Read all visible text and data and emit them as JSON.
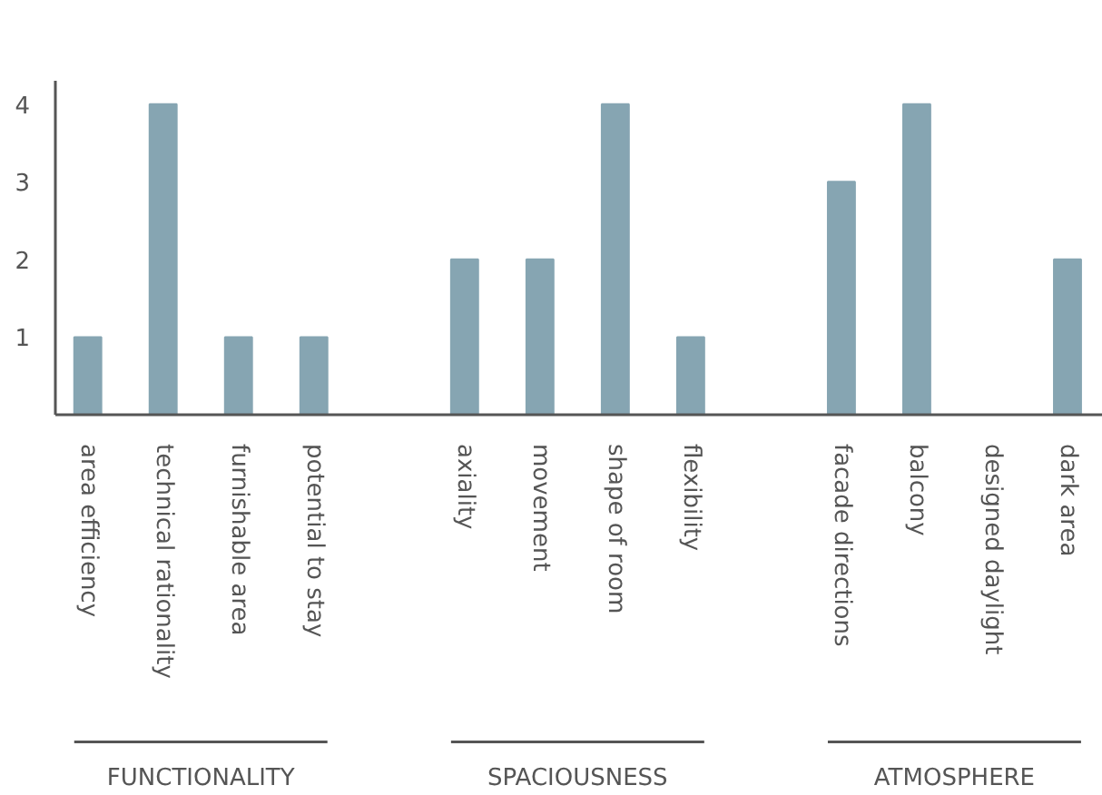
{
  "chart_data": {
    "type": "bar",
    "categories": [
      "area efficiency",
      "technical rationality",
      "furnishable area",
      "potential to stay",
      null,
      "axiality",
      "movement",
      "shape of room",
      "flexibility",
      null,
      "facade directions",
      "balcony",
      "designed daylight",
      "dark area"
    ],
    "values": [
      1,
      4,
      1,
      1,
      null,
      2,
      2,
      4,
      1,
      null,
      3,
      4,
      0,
      2
    ],
    "color": "#86a5b2",
    "ylim": [
      0,
      4.3
    ],
    "yticks": [
      1,
      2,
      3,
      4
    ],
    "grid": false,
    "annotations": [
      "FUNCTIONALITY",
      "SPACIOUSNESS",
      "ATMOSPHERE"
    ]
  }
}
